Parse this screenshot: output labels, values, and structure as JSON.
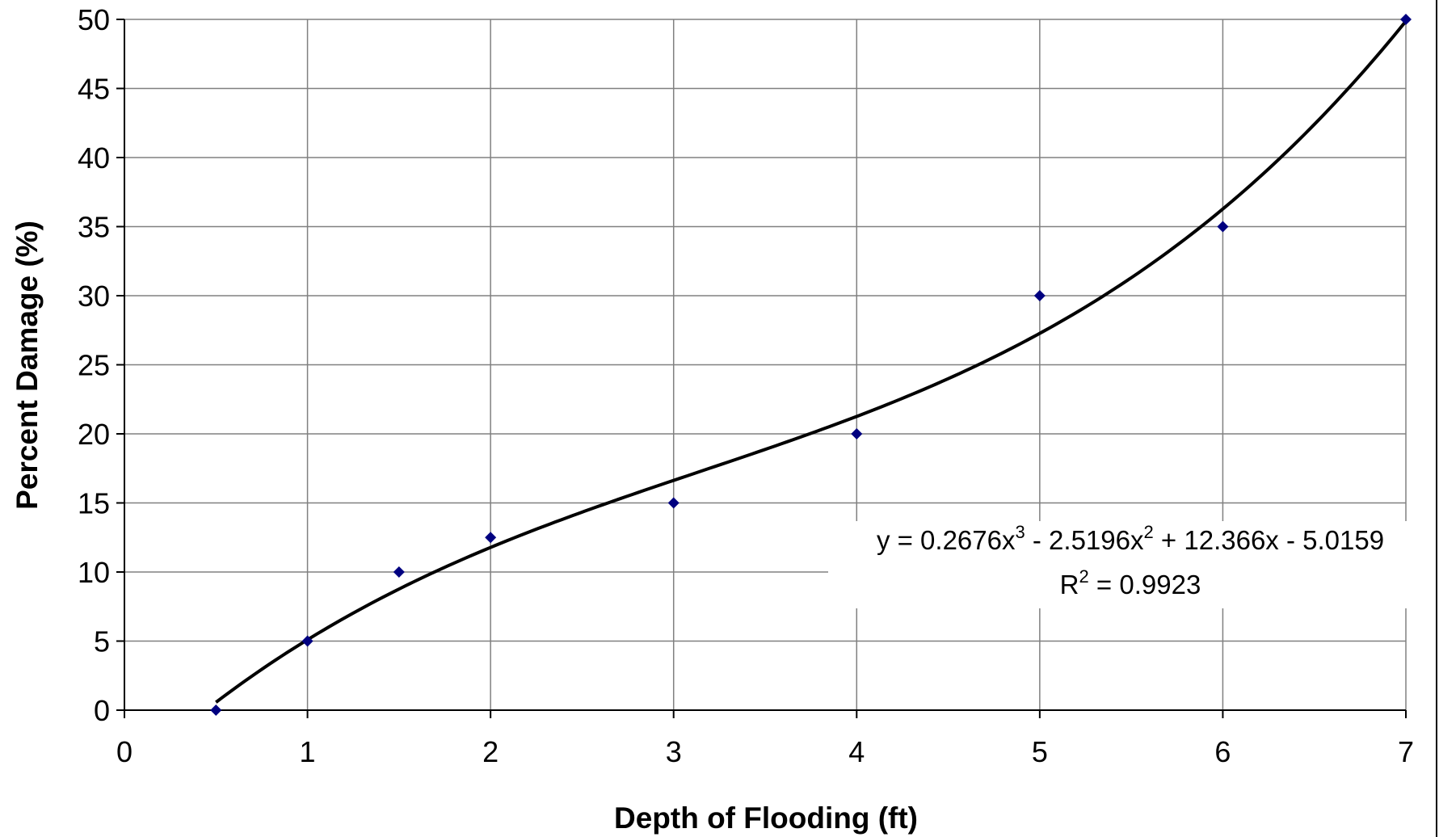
{
  "chart_data": {
    "type": "scatter",
    "title": "",
    "xlabel": "Depth of Flooding (ft)",
    "ylabel": "Percent Damage (%)",
    "xlim": [
      0,
      7
    ],
    "ylim": [
      0,
      50
    ],
    "x_ticks": [
      "0",
      "1",
      "2",
      "3",
      "4",
      "5",
      "6",
      "7"
    ],
    "y_ticks": [
      "0",
      "5",
      "10",
      "15",
      "20",
      "25",
      "30",
      "35",
      "40",
      "45",
      "50"
    ],
    "grid": true,
    "series": [
      {
        "x": [
          0.5,
          1,
          1.5,
          2,
          3,
          4,
          5,
          6,
          7
        ],
        "y": [
          0,
          5,
          10,
          12.5,
          15,
          20,
          30,
          35,
          50
        ],
        "marker": "diamond",
        "color": "#000080"
      }
    ],
    "trendline": {
      "type": "polynomial",
      "order": 3,
      "coefficients": [
        0.2676,
        -2.5196,
        12.366,
        -5.0159
      ],
      "x_range": [
        0.5,
        7
      ],
      "color": "#000000"
    },
    "equation_label": {
      "prefix": "y = 0.2676x",
      "sup1": "3",
      "mid": " - 2.5196x",
      "sup2": "2",
      "suffix": " + 12.366x - 5.0159",
      "r_prefix": "R",
      "r_sup": "2",
      "r_suffix": " = 0.9923"
    },
    "colors": {
      "marker": "#000080",
      "trendline": "#000000",
      "grid": "#808080",
      "background": "#ffffff"
    }
  }
}
